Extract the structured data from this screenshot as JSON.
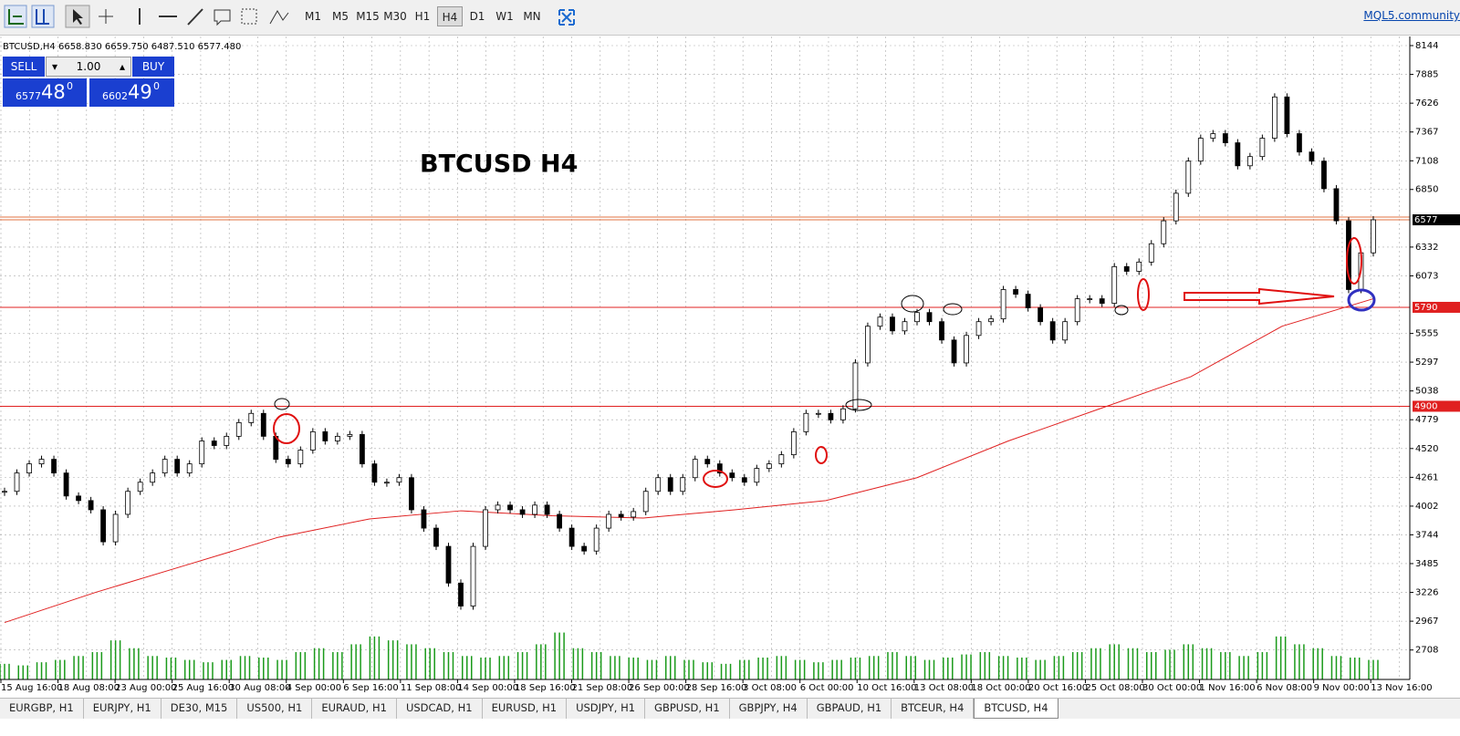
{
  "toolbar": {
    "timeframes": [
      "M1",
      "M5",
      "M15",
      "M30",
      "H1",
      "H4",
      "D1",
      "W1",
      "MN"
    ],
    "active": "H4",
    "link": "MQL5.community"
  },
  "trade_panel": {
    "sell": "SELL",
    "lot": "1.00",
    "buy": "BUY",
    "bid": {
      "main": "6577",
      "big": "48",
      "sup": "0"
    },
    "ask": {
      "main": "6602",
      "big": "49",
      "sup": "0"
    }
  },
  "chart_data": {
    "type": "candlestick",
    "header": "BTCUSD,H4 6658.830 6659.750 6487.510 6577.480",
    "title": "BTCUSD H4",
    "close": [
      4135,
      4300,
      4382,
      4423,
      4300,
      4093,
      4052,
      3969,
      3681,
      3928,
      4135,
      4217,
      4300,
      4423,
      4300,
      4382,
      4588,
      4547,
      4630,
      4753,
      4836,
      4630,
      4423,
      4382,
      4506,
      4671,
      4588,
      4630,
      4646,
      4382,
      4217,
      4217,
      4258,
      3969,
      3804,
      3640,
      3310,
      3103,
      3640,
      3969,
      4011,
      3969,
      3928,
      4011,
      3928,
      3804,
      3640,
      3598,
      3804,
      3928,
      3904,
      3953,
      4135,
      4258,
      4135,
      4258,
      4423,
      4382,
      4300,
      4258,
      4217,
      4341,
      4382,
      4464,
      4671,
      4836,
      4836,
      4778,
      4877,
      5290,
      5620,
      5702,
      5578,
      5661,
      5743,
      5661,
      5496,
      5290,
      5537,
      5661,
      5686,
      5950,
      5908,
      5785,
      5661,
      5496,
      5661,
      5867,
      5867,
      5826,
      6156,
      6114,
      6197,
      6362,
      6568,
      6816,
      7105,
      7311,
      7352,
      7270,
      7063,
      7146,
      7311,
      7682,
      7352,
      7187,
      7105,
      6857,
      6568,
      5950,
      6280,
      6577
    ],
    "ma": [
      2955,
      3227,
      3474,
      3722,
      3887,
      3960,
      3915,
      3895,
      3969,
      4052,
      4258,
      4588,
      4877,
      5166,
      5620,
      5867
    ],
    "volume": [
      20,
      18,
      22,
      25,
      30,
      35,
      50,
      40,
      30,
      28,
      25,
      22,
      25,
      30,
      28,
      25,
      35,
      40,
      35,
      45,
      55,
      50,
      45,
      40,
      35,
      30,
      28,
      30,
      35,
      45,
      60,
      40,
      35,
      30,
      28,
      25,
      30,
      25,
      22,
      20,
      25,
      28,
      30,
      25,
      22,
      25,
      28,
      30,
      35,
      30,
      25,
      28,
      32,
      35,
      30,
      28,
      25,
      30,
      35,
      40,
      45,
      40,
      35,
      38,
      45,
      40,
      35,
      30,
      35,
      55,
      45,
      40,
      30,
      28,
      25
    ],
    "vlim": [
      0,
      70
    ],
    "ylim": [
      2443,
      8226
    ],
    "yticks": [
      8144,
      7885,
      7626,
      7367,
      7108,
      6850,
      6332,
      6073,
      5555,
      5297,
      5038,
      4779,
      4520,
      4261,
      4002,
      3744,
      3485,
      3226,
      2967,
      2708
    ],
    "categories": [
      "15 Aug 16:00",
      "18 Aug 08:00",
      "23 Aug 00:00",
      "25 Aug 16:00",
      "30 Aug 08:00",
      "4 Sep 00:00",
      "6 Sep 16:00",
      "11 Sep 08:00",
      "14 Sep 00:00",
      "18 Sep 16:00",
      "21 Sep 08:00",
      "26 Sep 00:00",
      "28 Sep 16:00",
      "3 Oct 08:00",
      "6 Oct 00:00",
      "10 Oct 16:00",
      "13 Oct 08:00",
      "18 Oct 00:00",
      "20 Oct 16:00",
      "25 Oct 08:00",
      "30 Oct 00:00",
      "1 Nov 16:00",
      "6 Nov 08:00",
      "9 Nov 00:00",
      "13 Nov 16:00"
    ],
    "hlines": [
      {
        "value": 6602,
        "color": "#e07040",
        "tag": false
      },
      {
        "value": 6577,
        "color": "#e07040",
        "tag": true
      },
      {
        "value": 5790,
        "color": "#e02020",
        "tag": true
      },
      {
        "value": 4900,
        "color": "#e02020",
        "tag": true
      }
    ],
    "ma_color": "#e02020",
    "volume_color": "#1a9a1a",
    "grid": true
  },
  "tabs": [
    "EURGBP, H1",
    "EURJPY, H1",
    "DE30, M15",
    "US500, H1",
    "EURAUD, H1",
    "USDCAD, H1",
    "EURUSD, H1",
    "USDJPY, H1",
    "GBPUSD, H1",
    "GBPJPY, H4",
    "GBPAUD, H1",
    "BTCEUR, H4",
    "BTCUSD, H4"
  ],
  "active_tab": "BTCUSD, H4"
}
